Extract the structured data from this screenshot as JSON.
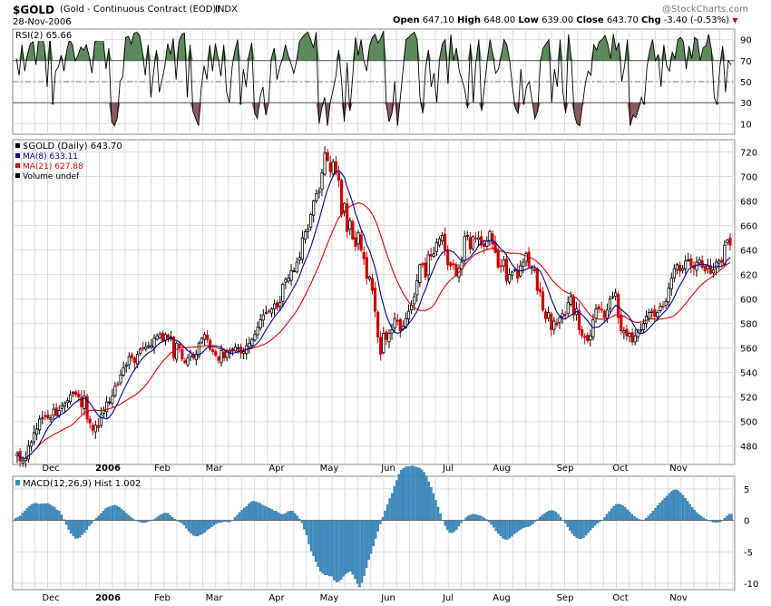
{
  "header": {
    "symbol": "$GOLD",
    "description": "(Gold - Continuous Contract (EOD))",
    "exchange": "INDX",
    "date": "28-Nov-2006",
    "open_label": "Open",
    "open_value": "647.10",
    "high_label": "High",
    "high_value": "648.00",
    "low_label": "Low",
    "low_value": "639.00",
    "close_label": "Close",
    "close_value": "643.70",
    "chg_label": "Chg",
    "chg_value": "-3.40 (-0.53%)",
    "watermark": "@StockCharts.com"
  },
  "colors": {
    "up": "#000000",
    "down": "#cc0000",
    "ma8": "#000099",
    "ma21": "#dd0000",
    "rsi_fill_high": "#5d8a5d",
    "rsi_fill_low": "#8b5a5a",
    "macd_hist": "#3a8fc8",
    "grid": "#dddddd"
  },
  "chart_data": [
    {
      "type": "line",
      "panel": "rsi",
      "legend": "RSI(2) 65.66",
      "ylim": [
        0,
        100
      ],
      "yticks": [
        "10",
        "30",
        "50",
        "70",
        "90"
      ],
      "reference_lines": [
        30,
        50,
        70
      ],
      "values": [
        72,
        56,
        85,
        60,
        76,
        86,
        88,
        66,
        92,
        95,
        84,
        45,
        94,
        28,
        60,
        64,
        75,
        60,
        80,
        90,
        85,
        70,
        75,
        83,
        80,
        85,
        74,
        58,
        88,
        89,
        92,
        90,
        62,
        82,
        12,
        8,
        15,
        50,
        55,
        92,
        93,
        86,
        96,
        97,
        94,
        78,
        56,
        85,
        35,
        60,
        80,
        40,
        52,
        65,
        86,
        76,
        91,
        52,
        88,
        95,
        96,
        35,
        85,
        22,
        15,
        8,
        45,
        65,
        52,
        85,
        60,
        86,
        72,
        55,
        85,
        40,
        30,
        64,
        80,
        90,
        28,
        62,
        45,
        75,
        87,
        20,
        15,
        36,
        45,
        18,
        30,
        72,
        82,
        52,
        64,
        72,
        85,
        75,
        67,
        58,
        70,
        88,
        92,
        95,
        97,
        90,
        82,
        97,
        10,
        25,
        35,
        8,
        30,
        42,
        55,
        80,
        52,
        12,
        68,
        22,
        55,
        92,
        75,
        90,
        70,
        60,
        84,
        92,
        95,
        87,
        91,
        98,
        28,
        12,
        20,
        50,
        8,
        35,
        62,
        90,
        92,
        95,
        97,
        90,
        35,
        20,
        62,
        80,
        45,
        58,
        30,
        72,
        86,
        90,
        48,
        95,
        70,
        82,
        60,
        52,
        42,
        25,
        86,
        30,
        70,
        90,
        22,
        45,
        70,
        90,
        76,
        58,
        62,
        75,
        90,
        85,
        70,
        45,
        25,
        20,
        62,
        28,
        45,
        50,
        32,
        15,
        22,
        70,
        82,
        86,
        90,
        30,
        62,
        45,
        90,
        40,
        20,
        95,
        72,
        20,
        10,
        8,
        28,
        48,
        60,
        56,
        85,
        80,
        88,
        90,
        94,
        86,
        72,
        95,
        80,
        87,
        50,
        65,
        90,
        8,
        18,
        16,
        24,
        35,
        28,
        64,
        80,
        90,
        70,
        76,
        45,
        85,
        65,
        60,
        78,
        72,
        90,
        92,
        88,
        62,
        84,
        72,
        92,
        90,
        70,
        82,
        84,
        95,
        80,
        35,
        28,
        64,
        84,
        40,
        70,
        66
      ],
      "last": 65.66
    },
    {
      "type": "candlestick",
      "panel": "price",
      "title": "$GOLD (Daily) 643.70",
      "ylim": [
        465,
        730
      ],
      "yticks": [
        "480",
        "500",
        "520",
        "540",
        "560",
        "580",
        "600",
        "620",
        "640",
        "660",
        "680",
        "700",
        "720"
      ],
      "x_labels": [
        "Dec",
        "2006",
        "Feb",
        "Mar",
        "Apr",
        "May",
        "Jun",
        "Jul",
        "Aug",
        "Sep",
        "Oct",
        "Nov"
      ],
      "close": [
        474,
        468,
        468,
        470,
        480,
        483,
        491,
        494,
        502,
        503,
        504,
        503,
        503,
        510,
        505,
        509,
        513,
        515,
        517,
        522,
        524,
        522,
        520,
        512,
        521,
        502,
        499,
        493,
        497,
        495,
        506,
        509,
        516,
        516,
        521,
        529,
        530,
        538,
        544,
        546,
        553,
        552,
        548,
        555,
        559,
        560,
        561,
        562,
        562,
        568,
        570,
        571,
        566,
        571,
        567,
        569,
        552,
        564,
        560,
        551,
        548,
        552,
        556,
        552,
        555,
        564,
        568,
        571,
        567,
        559,
        557,
        554,
        550,
        558,
        552,
        558,
        558,
        559,
        561,
        560,
        556,
        557,
        562,
        564,
        567,
        571,
        577,
        583,
        587,
        589,
        590,
        592,
        596,
        593,
        597,
        612,
        616,
        617,
        623,
        623,
        630,
        634,
        650,
        655,
        657,
        669,
        680,
        686,
        688,
        703,
        719,
        713,
        704,
        712,
        703,
        697,
        669,
        678,
        655,
        664,
        649,
        643,
        654,
        640,
        633,
        617,
        618,
        607,
        590,
        569,
        555,
        572,
        567,
        572,
        575,
        584,
        582,
        574,
        578,
        584,
        590,
        595,
        602,
        615,
        628,
        628,
        618,
        636,
        635,
        637,
        646,
        649,
        652,
        640,
        628,
        627,
        628,
        619,
        625,
        630,
        651,
        652,
        641,
        651,
        649,
        650,
        644,
        643,
        647,
        655,
        645,
        638,
        626,
        627,
        632,
        615,
        620,
        622,
        624,
        617,
        627,
        630,
        637,
        627,
        626,
        623,
        607,
        606,
        591,
        584,
        589,
        575,
        582,
        579,
        585,
        588,
        587,
        597,
        602,
        587,
        592,
        575,
        570,
        569,
        566,
        570,
        583,
        592,
        592,
        591,
        585,
        591,
        600,
        602,
        605,
        585,
        574,
        574,
        570,
        572,
        565,
        570,
        573,
        575,
        580,
        586,
        589,
        590,
        586,
        589,
        594,
        594,
        598,
        609,
        617,
        625,
        628,
        623,
        625,
        631,
        632,
        627,
        625,
        630,
        632,
        626,
        623,
        627,
        621,
        624,
        630,
        631,
        630,
        644,
        648,
        644
      ],
      "ma8_last": 633.11,
      "ma21_last": 627.88,
      "legend": [
        "$GOLD (Daily) 643.70",
        "MA(8) 633.11",
        "MA(21) 627.88",
        "Volume undef"
      ]
    },
    {
      "type": "bar",
      "panel": "macd",
      "legend": "MACD(12,26,9) Hist 1.002",
      "ylim": [
        -11,
        7
      ],
      "yticks": [
        "5",
        "0",
        "-5",
        "-10"
      ],
      "values": [
        0.31,
        0.52,
        0.72,
        1.16,
        1.5,
        1.9,
        2.24,
        2.51,
        2.69,
        2.71,
        2.6,
        2.61,
        2.64,
        2.65,
        2.7,
        2.52,
        2.27,
        2.06,
        1.66,
        1.5,
        0.88,
        0.14,
        -0.67,
        -1.44,
        -2.06,
        -2.48,
        -2.86,
        -2.84,
        -2.68,
        -2.26,
        -1.92,
        -1.45,
        -0.88,
        -0.53,
        0.08,
        0.36,
        0.69,
        1.09,
        1.48,
        1.86,
        2.07,
        2.21,
        2.35,
        2.42,
        2.3,
        2.07,
        1.75,
        1.47,
        1.14,
        0.82,
        0.54,
        0.25,
        0.05,
        -0.12,
        -0.28,
        -0.37,
        -0.35,
        -0.23,
        -0.1,
        -0.04,
        0.16,
        0.43,
        0.69,
        0.92,
        1.09,
        1.17,
        1.14,
        0.8,
        0.49,
        0.2,
        -0.05,
        -0.24,
        -0.43,
        -0.74,
        -1.26,
        -1.72,
        -2.08,
        -2.38,
        -2.49,
        -2.5,
        -2.28,
        -2.13,
        -1.91,
        -1.55,
        -1.29,
        -1.02,
        -0.77,
        -0.52,
        -0.38,
        -0.33,
        -0.21,
        -0.18,
        -0.27,
        -0.22,
        0.06,
        0.46,
        0.84,
        1.26,
        1.66,
        1.98,
        2.2,
        2.63,
        2.92,
        3.07,
        2.99,
        2.86,
        2.71,
        2.46,
        2.29,
        2.11,
        1.95,
        1.79,
        1.52,
        1.46,
        1.23,
        0.97,
        0.97,
        1.14,
        1.4,
        1.51,
        1.47,
        1.12,
        0.73,
        0.19,
        -0.41,
        -1.41,
        -2.34,
        -3.73,
        -4.88,
        -5.64,
        -6.55,
        -7.35,
        -8.07,
        -8.41,
        -8.67,
        -8.65,
        -8.84,
        -8.87,
        -9.5,
        -9.8,
        -9.73,
        -9.39,
        -8.88,
        -8.53,
        -8.26,
        -8.09,
        -8.61,
        -9.26,
        -10.05,
        -10.58,
        -9.88,
        -8.8,
        -7.54,
        -6.22,
        -5.26,
        -4.05,
        -2.89,
        -1.71,
        -0.58,
        0.5,
        1.51,
        2.48,
        3.47,
        4.28,
        5.42,
        6.35,
        7.34,
        7.97,
        8.26,
        8.51,
        8.56,
        8.59,
        8.66,
        8.52,
        8.44,
        8.3,
        8.06,
        7.6,
        7.01,
        6.13,
        5.26,
        4.28,
        3.21,
        2.11,
        1.04,
        0.06,
        -0.85,
        -1.52,
        -1.93,
        -1.98,
        -1.79,
        -1.44,
        -0.92,
        -0.41,
        0.08,
        0.44,
        0.69,
        0.88,
        0.98,
        0.94,
        0.86,
        0.75,
        0.6,
        0.39,
        0.15,
        -0.23,
        -0.65,
        -1.1,
        -1.66,
        -2.08,
        -2.47,
        -2.84,
        -3.0,
        -3.03,
        -2.83,
        -2.53,
        -2.16,
        -1.89,
        -1.58,
        -1.38,
        -1.18,
        -1.05,
        -0.98,
        -0.85,
        -0.59,
        -0.2,
        0.13,
        0.52,
        0.84,
        1.11,
        1.35,
        1.5,
        1.57,
        1.53,
        1.33,
        0.99,
        0.52,
        0.03,
        -0.46,
        -1.01,
        -1.59,
        -2.08,
        -2.45,
        -2.74,
        -2.89,
        -2.93,
        -2.73,
        -2.37,
        -1.98,
        -1.55,
        -1.15,
        -0.79,
        -0.46,
        -0.22,
        0.05,
        0.48,
        0.98,
        1.43,
        1.85,
        2.24,
        2.5,
        2.59,
        2.53,
        2.34,
        2.06,
        1.72,
        1.35,
        0.98,
        0.64,
        0.38,
        0.17,
        0.05,
        0.09,
        0.35,
        0.71,
        1.06,
        1.47,
        1.91,
        2.35,
        2.78,
        3.15,
        3.51,
        3.87,
        4.28,
        4.59,
        4.82,
        4.88,
        4.71,
        4.37,
        4.0,
        3.53,
        3.05,
        2.56,
        2.09,
        1.65,
        1.26,
        0.92,
        0.68,
        0.41,
        0.18,
        -0.01,
        -0.13,
        -0.27,
        -0.34,
        -0.32,
        -0.26,
        -0.08,
        0.35,
        0.71,
        0.98,
        1.0
      ],
      "last": 1.002
    }
  ]
}
